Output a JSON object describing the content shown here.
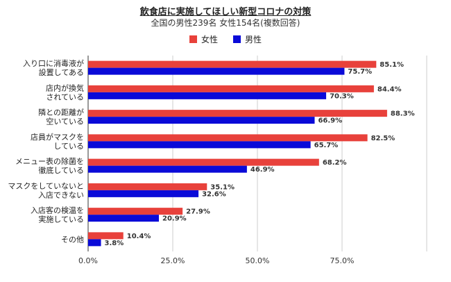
{
  "chart_data": {
    "type": "bar",
    "orientation": "horizontal",
    "title": "飲食店に実施してほしい新型コロナの対策",
    "subtitle": "全国の男性239名 女性154名(複数回答)",
    "categories": [
      [
        "入り口に消毒液が",
        "設置してある"
      ],
      [
        "店内が換気",
        "されている"
      ],
      [
        "隣との距離が",
        "空いている"
      ],
      [
        "店員がマスクを",
        "している"
      ],
      [
        "メニュー表の除菌を",
        "徹底している"
      ],
      [
        "マスクをしていないと",
        "入店できない"
      ],
      [
        "入店客の検温を",
        "実施している"
      ],
      [
        "その他"
      ]
    ],
    "series": [
      {
        "name": "女性",
        "color": "#e8413b",
        "values": [
          85.1,
          84.4,
          88.3,
          82.5,
          68.2,
          35.1,
          27.9,
          10.4
        ],
        "labels": [
          "85.1%",
          "84.4%",
          "88.3%",
          "82.5%",
          "68.2%",
          "35.1%",
          "27.9%",
          "10.4%"
        ]
      },
      {
        "name": "男性",
        "color": "#0a0ad8",
        "values": [
          75.7,
          70.3,
          66.9,
          65.7,
          46.9,
          32.6,
          20.9,
          3.8
        ],
        "labels": [
          "75.7%",
          "70.3%",
          "66.9%",
          "65.7%",
          "46.9%",
          "32.6%",
          "20.9%",
          "3.8%"
        ]
      }
    ],
    "xlim": [
      0,
      100
    ],
    "xticks": [
      0,
      25,
      50,
      75
    ],
    "xtick_labels": [
      "0.0%",
      "25.0%",
      "50.0%",
      "75.0%"
    ],
    "grid": true,
    "legend_position": "top-center"
  }
}
